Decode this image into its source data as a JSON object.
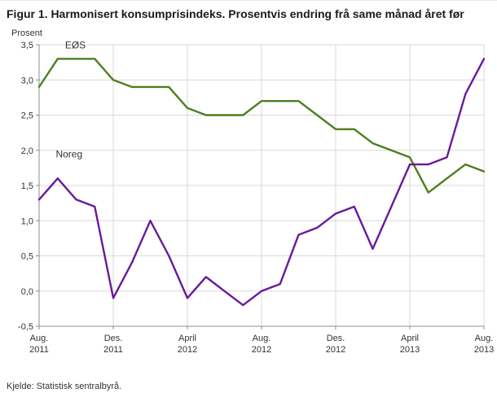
{
  "title": "Figur 1. Harmonisert konsumprisindeks. Prosentvis endring frå same månad året før",
  "y_unit_label": "Prosent",
  "source": "Kjelde: Statistisk sentralbyrå.",
  "chart_data": {
    "type": "line",
    "title": "Figur 1. Harmonisert konsumprisindeks. Prosentvis endring frå same månad året før",
    "xlabel": "",
    "ylabel": "Prosent",
    "ylim": [
      -0.5,
      3.5
    ],
    "x_unit": "month",
    "grid": true,
    "legend_position": "inline-labels",
    "colors": {
      "grid": "#d9d9d9",
      "axis": "#8c8c8c",
      "text": "#333333"
    },
    "y_ticks": [
      {
        "value": 3.5,
        "label": "3,5"
      },
      {
        "value": 3.0,
        "label": "3,0"
      },
      {
        "value": 2.5,
        "label": "2,5"
      },
      {
        "value": 2.0,
        "label": "2,0"
      },
      {
        "value": 1.5,
        "label": "1,5"
      },
      {
        "value": 1.0,
        "label": "1,0"
      },
      {
        "value": 0.5,
        "label": "0,5"
      },
      {
        "value": 0.0,
        "label": "0,0"
      },
      {
        "value": -0.5,
        "label": "-0,5"
      }
    ],
    "x_ticks": [
      {
        "index": 0,
        "line1": "Aug.",
        "line2": "2011"
      },
      {
        "index": 4,
        "line1": "Des.",
        "line2": "2011"
      },
      {
        "index": 8,
        "line1": "April",
        "line2": "2012"
      },
      {
        "index": 12,
        "line1": "Aug.",
        "line2": "2012"
      },
      {
        "index": 16,
        "line1": "Des.",
        "line2": "2012"
      },
      {
        "index": 20,
        "line1": "April",
        "line2": "2013"
      },
      {
        "index": 24,
        "line1": "Aug.",
        "line2": "2013"
      }
    ],
    "series": [
      {
        "name": "EØS",
        "color": "#4e7e20",
        "label_x_index": 1.4,
        "label_y_value": 3.45,
        "values": [
          2.9,
          3.3,
          3.3,
          3.3,
          3.0,
          2.9,
          2.9,
          2.9,
          2.6,
          2.5,
          2.5,
          2.5,
          2.7,
          2.7,
          2.7,
          2.5,
          2.3,
          2.3,
          2.1,
          2.0,
          1.9,
          1.4,
          1.6,
          1.8,
          1.7
        ]
      },
      {
        "name": "Noreg",
        "color": "#6a1a9a",
        "label_x_index": 0.9,
        "label_y_value": 1.9,
        "values": [
          1.3,
          1.6,
          1.3,
          1.2,
          -0.1,
          0.4,
          1.0,
          0.5,
          -0.1,
          0.2,
          0.0,
          -0.2,
          0.0,
          0.1,
          0.8,
          0.9,
          1.1,
          1.2,
          0.6,
          1.2,
          1.8,
          1.8,
          1.9,
          2.8,
          3.3
        ]
      }
    ]
  }
}
